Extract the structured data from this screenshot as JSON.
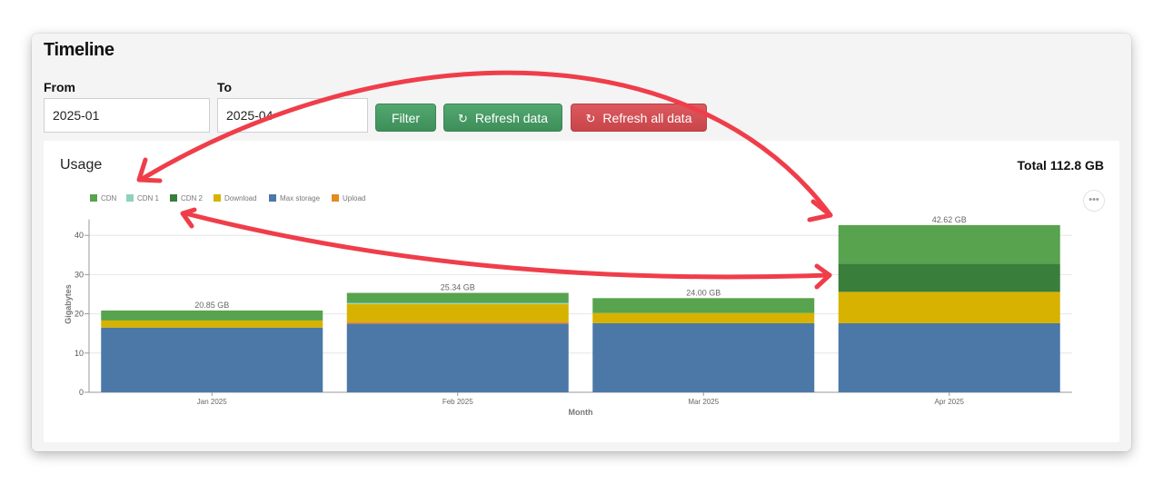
{
  "window": {
    "title": "Timeline"
  },
  "filters": {
    "from_label": "From",
    "from_value": "2025-01",
    "to_label": "To",
    "to_value": "2025-04"
  },
  "buttons": {
    "filter": "Filter",
    "refresh": "Refresh data",
    "refresh_all": "Refresh all data"
  },
  "panel": {
    "title": "Usage",
    "total": "Total 112.8 GB",
    "menu_icon": "ellipsis-icon"
  },
  "colors": {
    "cdn": "#58a34e",
    "cdn1": "#8fd1bd",
    "cdn2": "#3a7e3c",
    "download": "#d8b200",
    "max_storage": "#4c78a8",
    "upload": "#e68a1f",
    "arrow": "#ef3e4a",
    "btn_green": "#459862",
    "btn_red": "#d1494e"
  },
  "chart_data": {
    "type": "bar",
    "stacked": true,
    "categories": [
      "Jan 2025",
      "Feb 2025",
      "Mar 2025",
      "Apr 2025"
    ],
    "series": [
      {
        "name": "Max storage",
        "color": "#4c78a8",
        "values": [
          16.5,
          17.5,
          17.6,
          17.6
        ]
      },
      {
        "name": "Upload",
        "color": "#e68a1f",
        "values": [
          0,
          0.5,
          0,
          0
        ]
      },
      {
        "name": "Download",
        "color": "#d8b200",
        "values": [
          1.8,
          4.5,
          2.6,
          8.0
        ]
      },
      {
        "name": "CDN 2",
        "color": "#3a7e3c",
        "values": [
          0,
          0,
          0,
          7.2
        ]
      },
      {
        "name": "CDN 1",
        "color": "#8fd1bd",
        "values": [
          0,
          0.3,
          0,
          0
        ]
      },
      {
        "name": "CDN",
        "color": "#58a34e",
        "values": [
          2.55,
          2.54,
          3.8,
          9.82
        ]
      }
    ],
    "legend_order": [
      "CDN",
      "CDN 1",
      "CDN 2",
      "Download",
      "Max storage",
      "Upload"
    ],
    "totals": [
      "20.85 GB",
      "25.34 GB",
      "24.00 GB",
      "42.62 GB"
    ],
    "xlabel": "Month",
    "ylabel": "Gigabytes",
    "ylim": [
      0,
      45
    ],
    "yticks": [
      0,
      10,
      20,
      30,
      40
    ],
    "grid": true,
    "legend_position": "top-left"
  }
}
